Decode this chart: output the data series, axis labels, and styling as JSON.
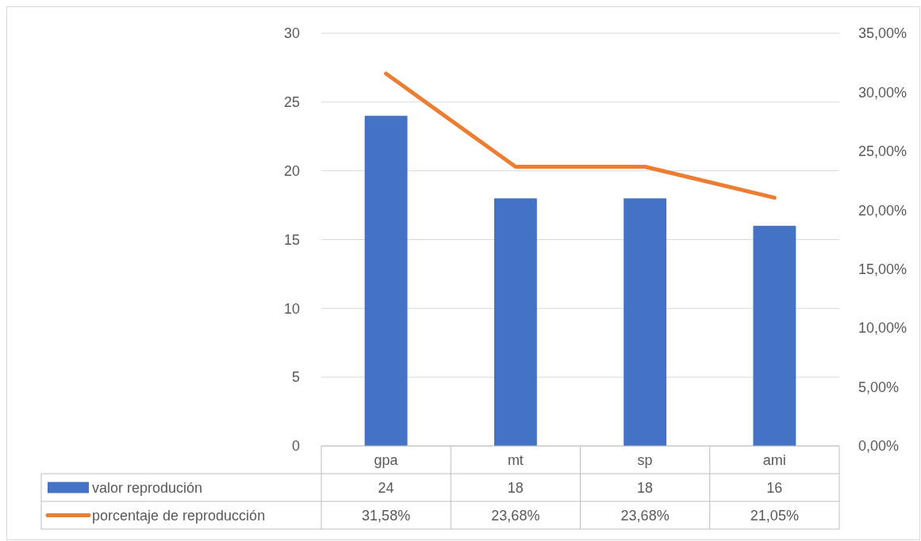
{
  "chart_data": {
    "type": "bar",
    "categories": [
      "gpa",
      "mt",
      "sp",
      "ami"
    ],
    "series": [
      {
        "name": "valor reprodución",
        "color": "#4472c4",
        "values": [
          24,
          18,
          18,
          16
        ],
        "value_labels": [
          "24",
          "18",
          "18",
          "16"
        ]
      },
      {
        "name": "porcentaje de reproducción",
        "type": "line",
        "axis": "y2",
        "color": "#ed7d31",
        "values": [
          31.58,
          23.68,
          23.68,
          21.05
        ],
        "value_labels": [
          "31,58%",
          "23,68%",
          "23,68%",
          "21,05%"
        ]
      }
    ],
    "ylim": [
      0,
      30
    ],
    "yticks": [
      0,
      5,
      10,
      15,
      20,
      25,
      30
    ],
    "y2lim": [
      0,
      35
    ],
    "y2ticks": [
      {
        "value": 0,
        "label": "0,00%"
      },
      {
        "value": 5,
        "label": "5,00%"
      },
      {
        "value": 10,
        "label": "10,00%"
      },
      {
        "value": 15,
        "label": "15,00%"
      },
      {
        "value": 20,
        "label": "20,00%"
      },
      {
        "value": 25,
        "label": "25,00%"
      },
      {
        "value": 30,
        "label": "30,00%"
      },
      {
        "value": 35,
        "label": "35,00%"
      }
    ],
    "grid": "y",
    "legend": "bottom",
    "marker": "none",
    "line_style": "solid"
  }
}
